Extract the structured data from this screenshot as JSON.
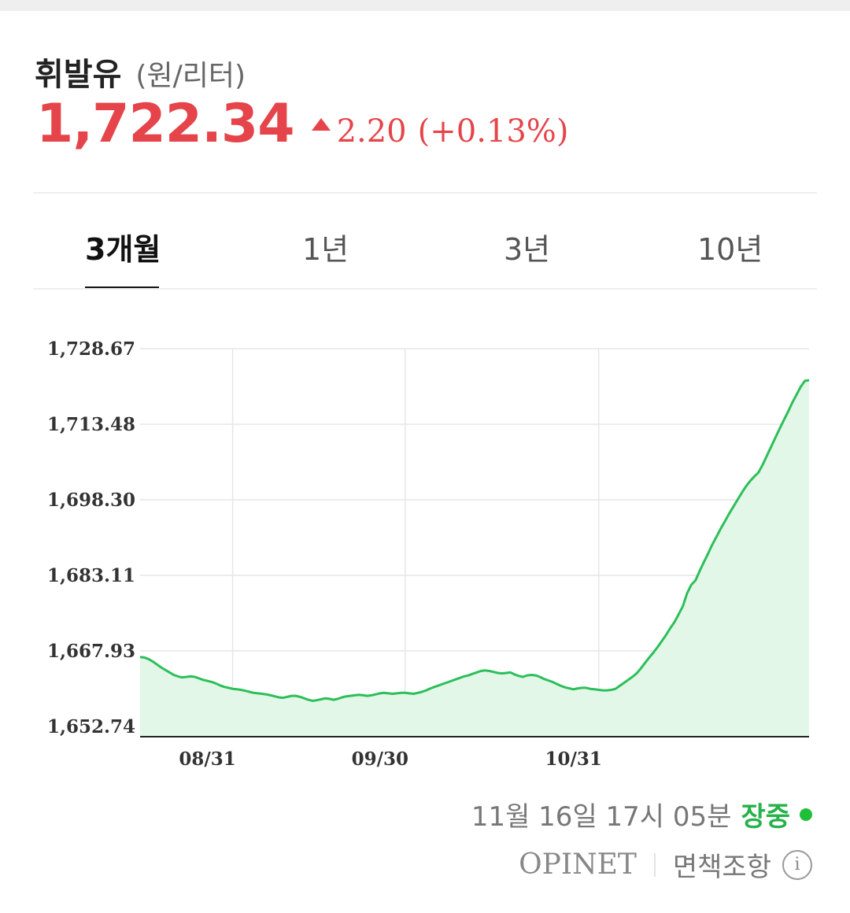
{
  "header": {
    "title": "휘발유",
    "unit": "(원/리터)",
    "price": "1,722.34",
    "change": "2.20",
    "change_pct": "(+0.13%)"
  },
  "tabs": [
    {
      "label": "3개월",
      "active": true
    },
    {
      "label": "1년",
      "active": false
    },
    {
      "label": "3년",
      "active": false
    },
    {
      "label": "10년",
      "active": false
    }
  ],
  "footer": {
    "timestamp": "11월 16일 17시 05분",
    "status": "장중",
    "source": "OPINET",
    "disclaimer": "면책조항"
  },
  "colors": {
    "price_up": "#e5454a",
    "line": "#2cbf59",
    "fill": "#e3f7e8",
    "status": "#25b24a"
  },
  "chart_data": {
    "type": "area",
    "ylim": [
      1652.74,
      1728.67
    ],
    "y_ticks": [
      "1,728.67",
      "1,713.48",
      "1,698.30",
      "1,683.11",
      "1,667.93",
      "1,652.74"
    ],
    "x_tick_labels": [
      "08/31",
      "09/30",
      "10/31"
    ],
    "x_tick_index": [
      22,
      63,
      109
    ],
    "grid": true,
    "series": [
      {
        "values": [
          1666.7,
          1666.6,
          1666.3,
          1665.8,
          1665.2,
          1664.6,
          1664.1,
          1663.6,
          1663.1,
          1662.8,
          1662.6,
          1662.7,
          1662.8,
          1662.7,
          1662.4,
          1662.1,
          1661.9,
          1661.7,
          1661.4,
          1661.0,
          1660.7,
          1660.5,
          1660.3,
          1660.2,
          1660.1,
          1659.9,
          1659.7,
          1659.5,
          1659.4,
          1659.3,
          1659.2,
          1659.0,
          1658.8,
          1658.6,
          1658.5,
          1658.7,
          1658.9,
          1658.9,
          1658.7,
          1658.4,
          1658.1,
          1657.9,
          1658.0,
          1658.2,
          1658.4,
          1658.3,
          1658.1,
          1658.3,
          1658.6,
          1658.8,
          1658.9,
          1659.0,
          1659.1,
          1659.0,
          1658.9,
          1659.0,
          1659.2,
          1659.4,
          1659.5,
          1659.4,
          1659.3,
          1659.4,
          1659.5,
          1659.5,
          1659.4,
          1659.3,
          1659.5,
          1659.7,
          1660.0,
          1660.4,
          1660.7,
          1661.0,
          1661.3,
          1661.6,
          1661.9,
          1662.2,
          1662.5,
          1662.8,
          1663.0,
          1663.3,
          1663.6,
          1663.9,
          1664.0,
          1663.9,
          1663.7,
          1663.5,
          1663.4,
          1663.5,
          1663.6,
          1663.2,
          1662.9,
          1662.7,
          1663.0,
          1663.1,
          1663.0,
          1662.7,
          1662.3,
          1662.0,
          1661.7,
          1661.3,
          1660.9,
          1660.6,
          1660.4,
          1660.2,
          1660.4,
          1660.5,
          1660.5,
          1660.3,
          1660.2,
          1660.1,
          1660.0,
          1660.0,
          1660.1,
          1660.3,
          1660.9,
          1661.5,
          1662.1,
          1662.7,
          1663.4,
          1664.4,
          1665.5,
          1666.6,
          1667.6,
          1668.7,
          1669.9,
          1671.1,
          1672.5,
          1673.7,
          1675.3,
          1676.9,
          1679.5,
          1681.2,
          1682.1,
          1684.0,
          1685.8,
          1687.5,
          1689.3,
          1690.9,
          1692.5,
          1694.0,
          1695.5,
          1696.9,
          1698.3,
          1699.7,
          1701.0,
          1702.1,
          1703.0,
          1703.8,
          1705.4,
          1707.2,
          1709.0,
          1710.8,
          1712.6,
          1714.3,
          1716.0,
          1717.8,
          1719.4,
          1721.0,
          1722.2,
          1722.34
        ]
      }
    ]
  }
}
